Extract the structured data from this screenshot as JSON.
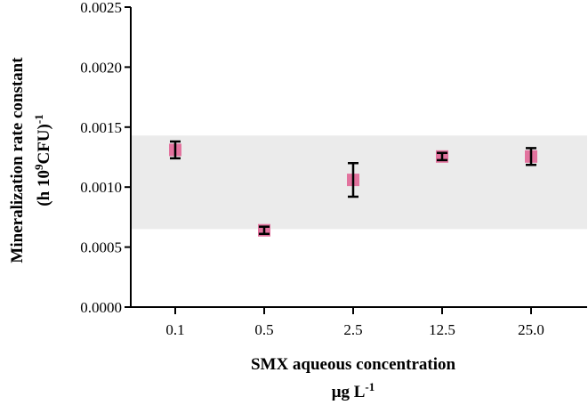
{
  "chart_data": {
    "type": "scatter",
    "title": "",
    "xlabel": "SMX aqueous concentration",
    "xlabel_unit_base": "μg L",
    "xlabel_unit_sup": "-1",
    "ylabel": "Mineralization rate constant",
    "ylabel_unit_open": "(h 10",
    "ylabel_unit_sup1": "9",
    "ylabel_unit_mid": "CFU)",
    "ylabel_unit_sup2": "-1",
    "categories": [
      "0.1",
      "0.5",
      "2.5",
      "12.5",
      "25.0"
    ],
    "values": [
      0.00131,
      0.00064,
      0.00106,
      0.001255,
      0.001255
    ],
    "errors": [
      7e-05,
      3e-05,
      0.00014,
      3e-05,
      7e-05
    ],
    "ylim": [
      0,
      0.0025
    ],
    "yticks": [
      "0.0000",
      "0.0005",
      "0.0010",
      "0.0015",
      "0.0020",
      "0.0025"
    ],
    "ytick_values": [
      0,
      0.0005,
      0.001,
      0.0015,
      0.002,
      0.0025
    ],
    "band": [
      0.00065,
      0.00143
    ],
    "grid": false,
    "legend": "none",
    "colors": {
      "marker": "#e2739e",
      "error_bar": "#000000",
      "band": "#ebebeb",
      "axis": "#000000"
    }
  }
}
